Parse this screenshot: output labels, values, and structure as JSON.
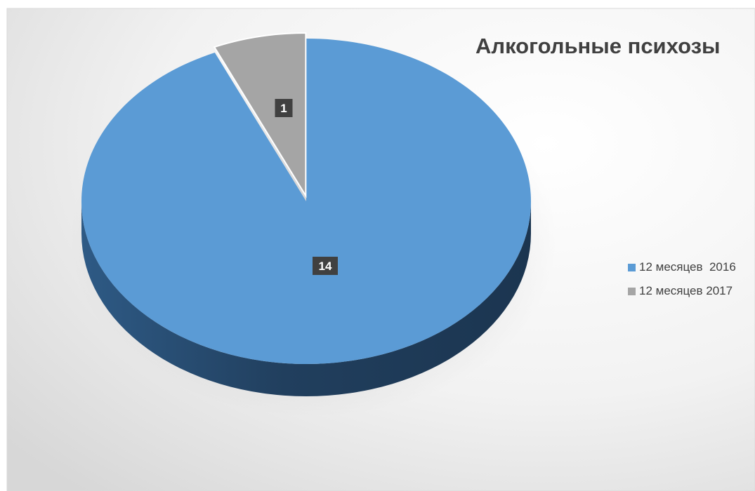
{
  "chart_data": {
    "type": "pie",
    "title": "Алкогольные психозы",
    "categories": [
      "12 месяцев  2016",
      "12 месяцев 2017"
    ],
    "values": [
      14,
      1
    ],
    "data_labels": [
      "14",
      "1"
    ],
    "colors": [
      "#5b9bd5",
      "#a5a5a5"
    ],
    "legend_position": "right",
    "exploded_slice": "12 месяцев 2017",
    "style": "3d"
  }
}
